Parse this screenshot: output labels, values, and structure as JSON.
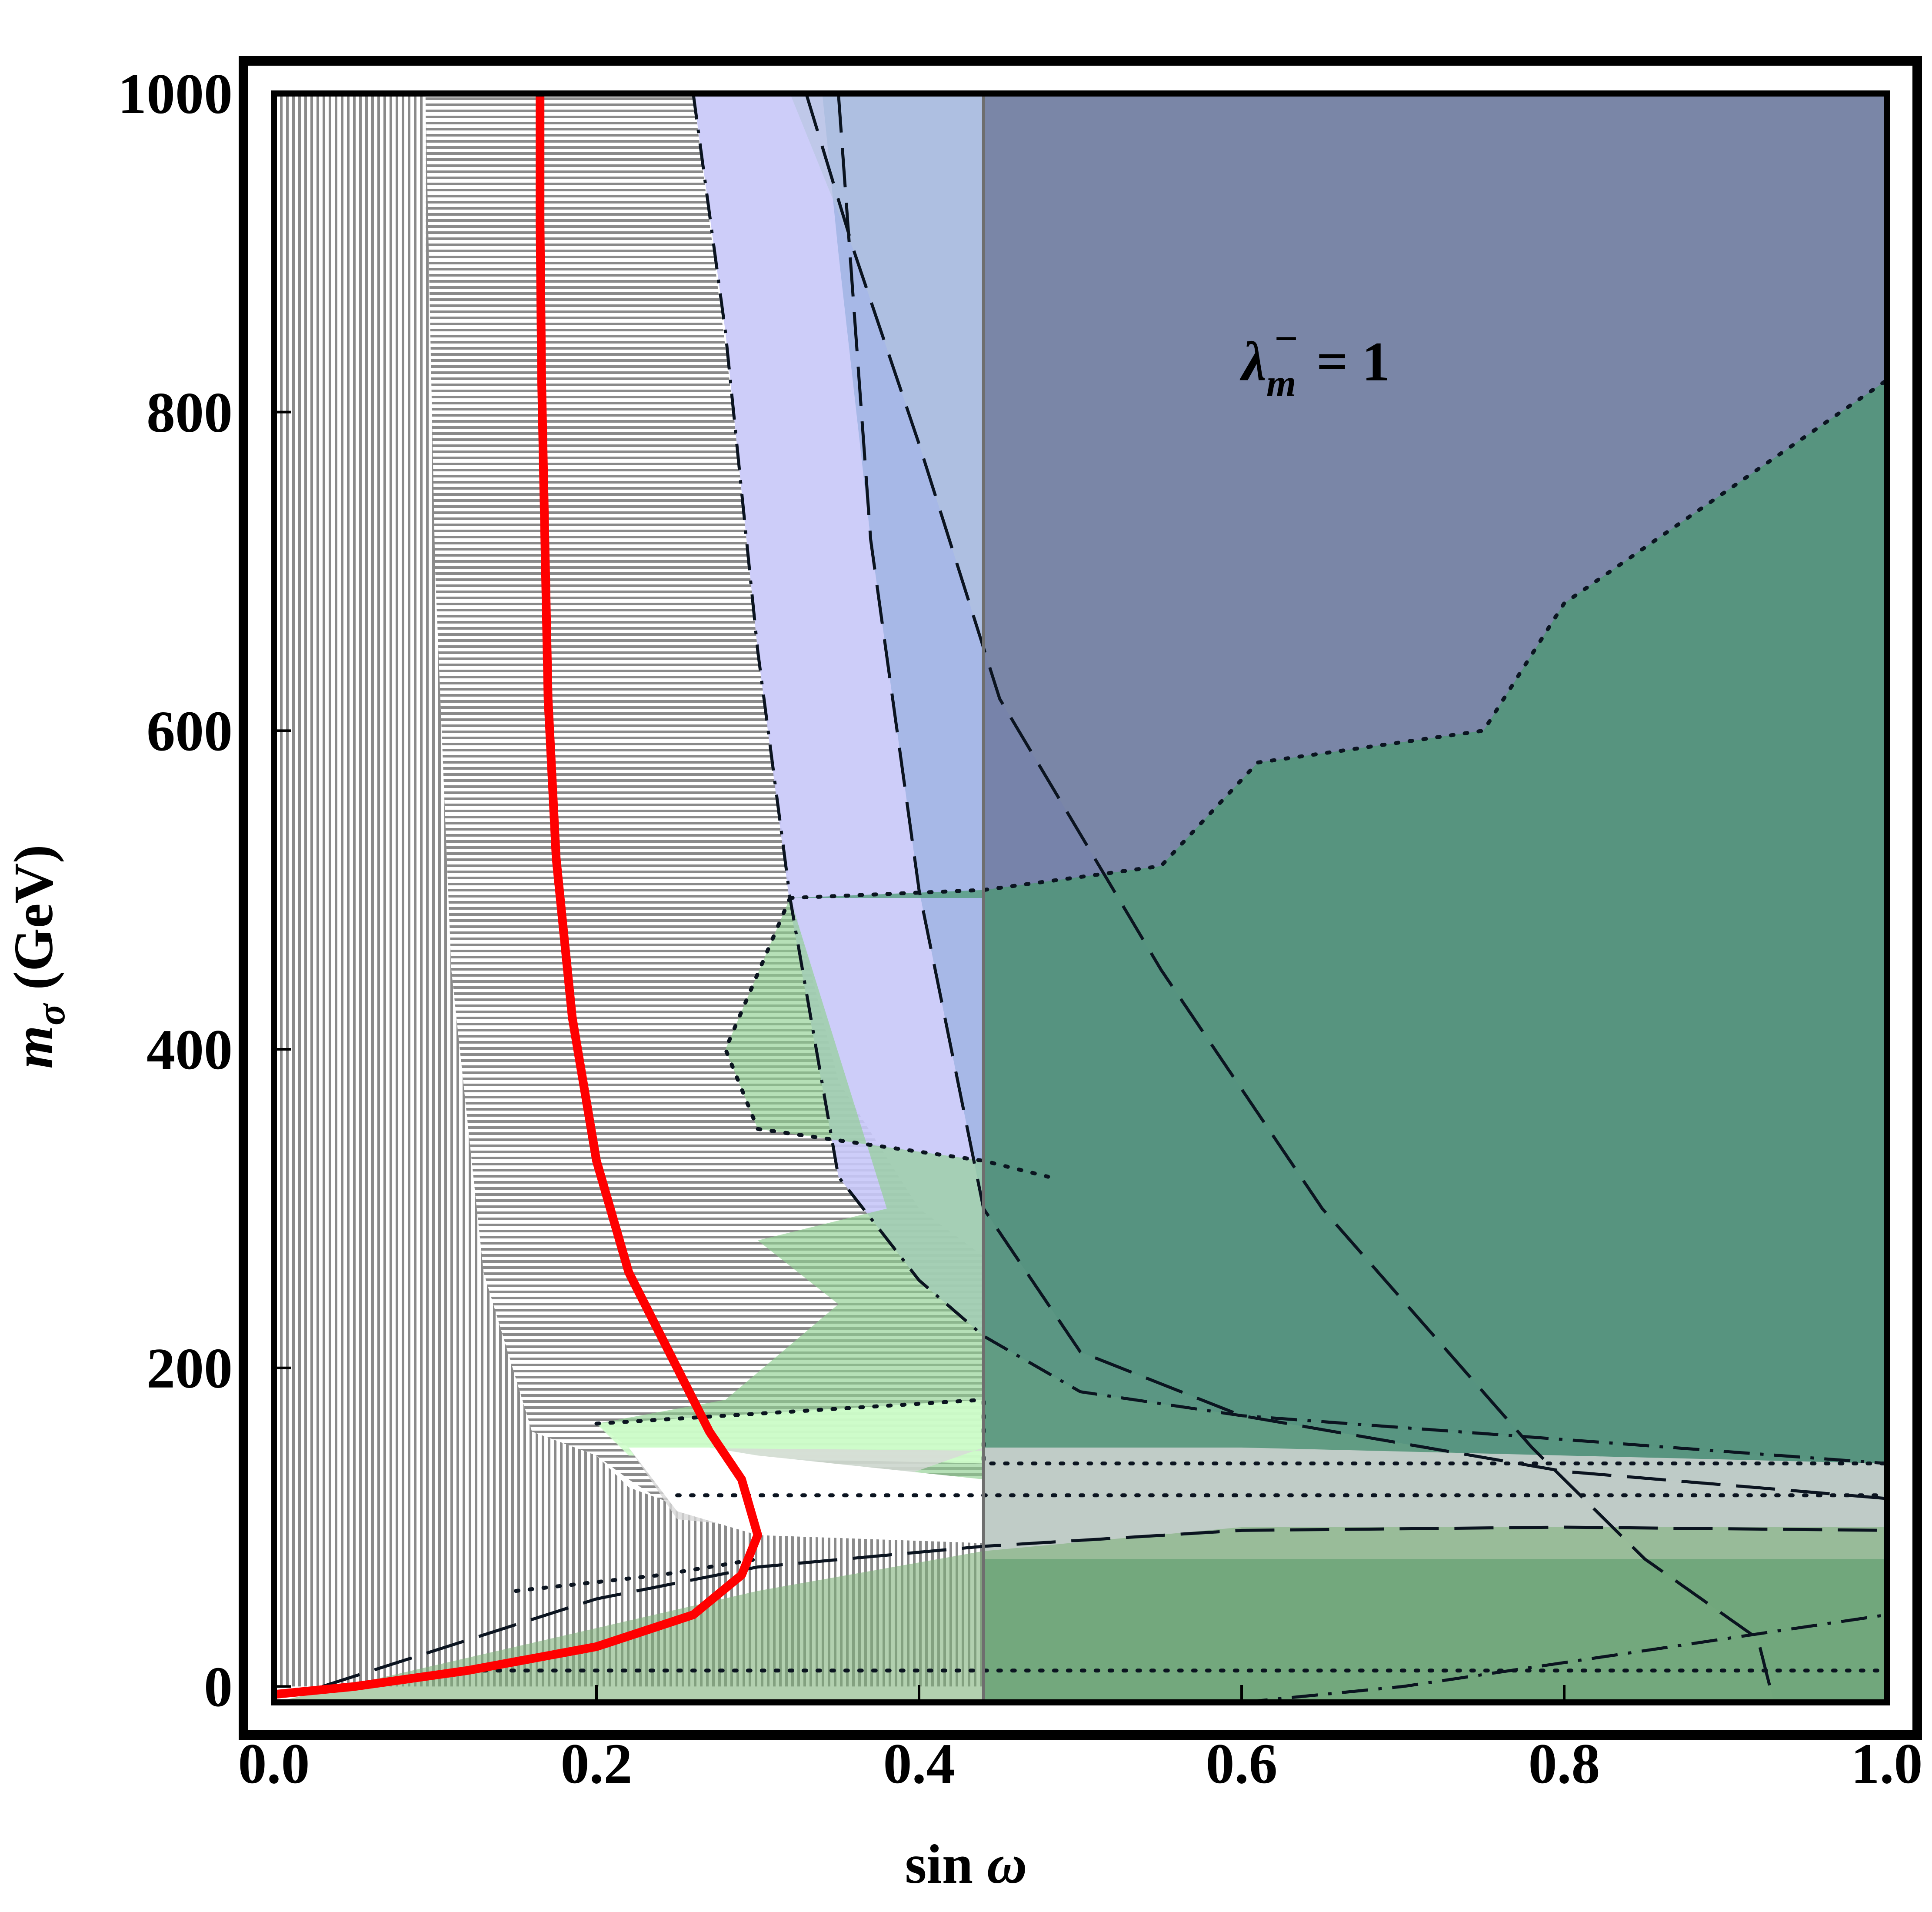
{
  "chart_data": {
    "type": "area",
    "xlabel": "sin ω",
    "ylabel": "m_σ (GeV)",
    "xlabel_parts": {
      "text": "sin",
      "symbol": "ω"
    },
    "ylabel_parts": {
      "symbol": "m",
      "subscript": "σ",
      "unit": "(GeV)"
    },
    "xlim": [
      0,
      1
    ],
    "ylim": [
      -10,
      1000
    ],
    "x_ticks": [
      "0.0",
      "0.2",
      "0.4",
      "0.6",
      "0.8",
      "1.0"
    ],
    "x_tick_values": [
      0,
      0.2,
      0.4,
      0.6,
      0.8,
      1.0
    ],
    "y_ticks": [
      "0",
      "200",
      "400",
      "600",
      "800",
      "1000"
    ],
    "y_tick_values": [
      0,
      200,
      400,
      600,
      800,
      1000
    ],
    "grid": false,
    "annotation": {
      "symbol": "λ",
      "subscript": "m",
      "superscript": "−",
      "rest": " = 1",
      "x": 0.6,
      "y": 820
    },
    "hatch_regions": [
      {
        "style": "vertical",
        "x": [
          0.0,
          0.094
        ],
        "y": [
          0,
          1000
        ]
      },
      {
        "style": "horizontal",
        "polygon": [
          [
            0.094,
            1000
          ],
          [
            0.26,
            1000
          ],
          [
            0.27,
            920
          ],
          [
            0.285,
            800
          ],
          [
            0.3,
            650
          ],
          [
            0.32,
            500
          ],
          [
            0.35,
            380
          ],
          [
            0.4,
            300
          ],
          [
            0.44,
            270
          ],
          [
            0.44,
            100
          ],
          [
            0.3,
            95
          ],
          [
            0.25,
            110
          ],
          [
            0.22,
            130
          ],
          [
            0.2,
            145
          ],
          [
            0.16,
            160
          ],
          [
            0.13,
            260
          ],
          [
            0.11,
            450
          ],
          [
            0.1,
            700
          ],
          [
            0.094,
            900
          ]
        ]
      },
      {
        "style": "vertical",
        "polygon": [
          [
            0.094,
            1000
          ],
          [
            0.094,
            0
          ],
          [
            0.44,
            0
          ],
          [
            0.44,
            90
          ],
          [
            0.3,
            95
          ],
          [
            0.22,
            125
          ],
          [
            0.2,
            145
          ],
          [
            0.16,
            160
          ],
          [
            0.13,
            260
          ],
          [
            0.11,
            450
          ],
          [
            0.1,
            700
          ]
        ]
      }
    ],
    "shaded_regions": [
      {
        "color": "#c8c8f8",
        "opacity": 0.9,
        "boundary": "dash-dot",
        "polygon": [
          [
            0.26,
            1000
          ],
          [
            1,
            1000
          ],
          [
            1,
            140
          ],
          [
            0.8,
            155
          ],
          [
            0.6,
            170
          ],
          [
            0.5,
            185
          ],
          [
            0.44,
            220
          ],
          [
            0.4,
            255
          ],
          [
            0.35,
            320
          ],
          [
            0.32,
            490
          ],
          [
            0.3,
            650
          ],
          [
            0.28,
            850
          ]
        ]
      },
      {
        "color": "#9ab0e0",
        "opacity": 0.75,
        "boundary": "long-dash",
        "polygon": [
          [
            0.34,
            1000
          ],
          [
            1,
            1000
          ],
          [
            1,
            118
          ],
          [
            0.8,
            135
          ],
          [
            0.6,
            170
          ],
          [
            0.5,
            210
          ],
          [
            0.44,
            300
          ],
          [
            0.4,
            500
          ],
          [
            0.37,
            720
          ],
          [
            0.35,
            900
          ]
        ]
      },
      {
        "color": "#b4c4dc",
        "opacity": 0.55,
        "boundary": "long-dash-curve",
        "polygon": [
          [
            0.32,
            1000
          ],
          [
            1,
            1000
          ],
          [
            1,
            -10
          ],
          [
            0.93,
            -10
          ],
          [
            0.92,
            30
          ],
          [
            0.85,
            80
          ],
          [
            0.78,
            150
          ],
          [
            0.65,
            300
          ],
          [
            0.55,
            450
          ],
          [
            0.45,
            620
          ],
          [
            0.4,
            780
          ],
          [
            0.36,
            900
          ]
        ]
      },
      {
        "color": "#505878",
        "opacity": 0.55,
        "boundary": "vertical-line",
        "polygon": [
          [
            0.44,
            1000
          ],
          [
            1,
            1000
          ],
          [
            1,
            -10
          ],
          [
            0.44,
            -10
          ]
        ]
      },
      {
        "color": "#4a9a70",
        "opacity": 0.72,
        "boundary": "dotted",
        "polygon": [
          [
            0.32,
            495
          ],
          [
            0.44,
            500
          ],
          [
            0.55,
            515
          ],
          [
            0.61,
            580
          ],
          [
            0.75,
            600
          ],
          [
            0.8,
            680
          ],
          [
            0.9,
            750
          ],
          [
            1,
            820
          ],
          [
            1,
            -10
          ],
          [
            0.44,
            -10
          ],
          [
            0.44,
            495
          ]
        ]
      },
      {
        "color": "#8fd090",
        "opacity": 0.65,
        "boundary": "dotted",
        "polygon": [
          [
            0.32,
            495
          ],
          [
            0.28,
            400
          ],
          [
            0.3,
            350
          ],
          [
            0.44,
            330
          ],
          [
            0.44,
            130
          ],
          [
            0.3,
            140
          ],
          [
            0.22,
            150
          ],
          [
            0.2,
            165
          ],
          [
            0.28,
            180
          ],
          [
            0.35,
            240
          ],
          [
            0.3,
            280
          ],
          [
            0.38,
            300
          ]
        ]
      },
      {
        "color": "#d0ffcc",
        "opacity": 0.9,
        "boundary": "dotted",
        "polygon": [
          [
            0.2,
            165
          ],
          [
            0.44,
            180
          ],
          [
            0.44,
            140
          ],
          [
            0.22,
            145
          ]
        ]
      },
      {
        "color": "#d8d8d8",
        "opacity": 0.8,
        "boundary": "dotted",
        "polygon": [
          [
            0.22,
            150
          ],
          [
            0.44,
            148
          ],
          [
            0.44,
            80
          ],
          [
            1,
            80
          ],
          [
            1,
            140
          ],
          [
            0.8,
            145
          ],
          [
            0.6,
            150
          ],
          [
            0.44,
            150
          ],
          [
            0.3,
            100
          ],
          [
            0.25,
            105
          ]
        ]
      },
      {
        "color": "#7fb07a",
        "opacity": 0.6,
        "boundary": "long-dash",
        "polygon": [
          [
            0.0,
            -10
          ],
          [
            0.3,
            60
          ],
          [
            0.44,
            85
          ],
          [
            0.6,
            100
          ],
          [
            1,
            100
          ],
          [
            1,
            -10
          ]
        ]
      },
      {
        "color": "#ffffff",
        "opacity": 1.0,
        "boundary": "none",
        "polygon": [
          [
            0.22,
            150
          ],
          [
            0.27,
            150
          ],
          [
            0.3,
            145
          ],
          [
            0.44,
            130
          ],
          [
            0.44,
            95
          ],
          [
            0.3,
            95
          ],
          [
            0.25,
            110
          ]
        ]
      }
    ],
    "contour_lines": [
      {
        "style": "dash-dot",
        "points": [
          [
            0.26,
            1000
          ],
          [
            0.28,
            850
          ],
          [
            0.3,
            650
          ],
          [
            0.32,
            495
          ],
          [
            0.35,
            320
          ],
          [
            0.4,
            255
          ],
          [
            0.44,
            220
          ],
          [
            0.5,
            185
          ],
          [
            0.6,
            170
          ],
          [
            0.8,
            155
          ],
          [
            1,
            140
          ]
        ]
      },
      {
        "style": "long-dash",
        "points": [
          [
            0.35,
            1000
          ],
          [
            0.37,
            720
          ],
          [
            0.4,
            500
          ],
          [
            0.44,
            300
          ],
          [
            0.5,
            210
          ],
          [
            0.6,
            170
          ],
          [
            0.8,
            135
          ],
          [
            1,
            118
          ]
        ]
      },
      {
        "style": "long-dash",
        "points": [
          [
            0.33,
            1000
          ],
          [
            0.36,
            900
          ],
          [
            0.4,
            780
          ],
          [
            0.45,
            620
          ],
          [
            0.55,
            450
          ],
          [
            0.65,
            300
          ],
          [
            0.78,
            150
          ],
          [
            0.85,
            80
          ],
          [
            0.92,
            30
          ],
          [
            0.93,
            -10
          ]
        ]
      },
      {
        "style": "long-dash",
        "points": [
          [
            0.03,
            0
          ],
          [
            0.2,
            55
          ],
          [
            0.3,
            75
          ],
          [
            0.44,
            88
          ],
          [
            0.6,
            98
          ],
          [
            0.8,
            100
          ],
          [
            1,
            98
          ]
        ]
      },
      {
        "style": "dash-dot",
        "points": [
          [
            0.6,
            -10
          ],
          [
            0.7,
            0
          ],
          [
            0.8,
            15
          ],
          [
            0.9,
            30
          ],
          [
            1,
            45
          ]
        ]
      },
      {
        "style": "dotted",
        "points": [
          [
            0.32,
            495
          ],
          [
            0.44,
            500
          ],
          [
            0.55,
            515
          ],
          [
            0.61,
            580
          ],
          [
            0.75,
            600
          ],
          [
            0.8,
            680
          ],
          [
            0.9,
            750
          ],
          [
            1,
            820
          ]
        ]
      },
      {
        "style": "dotted",
        "points": [
          [
            0.32,
            495
          ],
          [
            0.28,
            400
          ],
          [
            0.3,
            350
          ],
          [
            0.44,
            330
          ],
          [
            0.48,
            320
          ]
        ]
      },
      {
        "style": "dotted",
        "points": [
          [
            0.2,
            165
          ],
          [
            0.44,
            180
          ],
          [
            0.44,
            140
          ],
          [
            1,
            140
          ]
        ]
      },
      {
        "style": "dotted",
        "points": [
          [
            0.25,
            120
          ],
          [
            0.44,
            120
          ],
          [
            1,
            120
          ]
        ]
      },
      {
        "style": "dotted",
        "points": [
          [
            0.13,
            10
          ],
          [
            1,
            10
          ]
        ]
      },
      {
        "style": "dotted",
        "points": [
          [
            0.15,
            60
          ],
          [
            0.24,
            70
          ],
          [
            0.3,
            80
          ]
        ]
      },
      {
        "style": "long-dash",
        "points": [
          [
            0.05,
            -10
          ],
          [
            1,
            -10
          ]
        ]
      }
    ],
    "vertical_line": {
      "x": 0.44,
      "style": "solid-grey"
    },
    "highlight_curve": {
      "color": "#ff0000",
      "points": [
        [
          0.0,
          -5
        ],
        [
          0.05,
          0
        ],
        [
          0.12,
          10
        ],
        [
          0.2,
          25
        ],
        [
          0.26,
          45
        ],
        [
          0.29,
          70
        ],
        [
          0.3,
          95
        ],
        [
          0.29,
          130
        ],
        [
          0.27,
          160
        ],
        [
          0.25,
          200
        ],
        [
          0.22,
          260
        ],
        [
          0.2,
          330
        ],
        [
          0.185,
          420
        ],
        [
          0.175,
          520
        ],
        [
          0.17,
          620
        ],
        [
          0.168,
          720
        ],
        [
          0.166,
          820
        ],
        [
          0.165,
          920
        ],
        [
          0.165,
          1000
        ]
      ]
    }
  }
}
